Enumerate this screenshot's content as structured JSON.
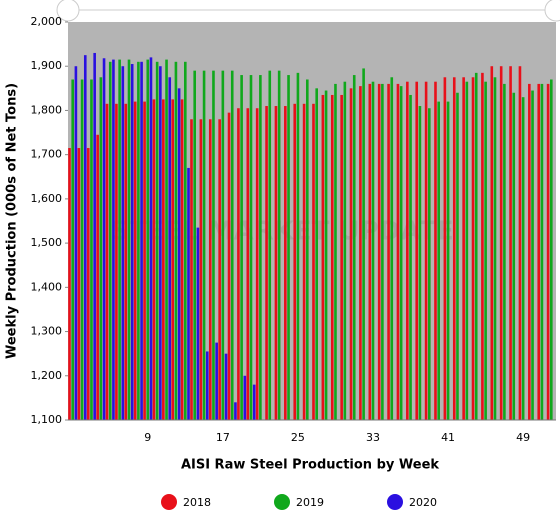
{
  "chart_data": {
    "type": "bar",
    "xlabel": "AISI Raw Steel Production by Week",
    "ylabel": "Weekly Production (000s of Net Tons)",
    "watermark": "STEEL MARKET UPDATE",
    "categories": [
      null,
      null,
      null,
      null,
      null,
      null,
      null,
      null,
      9,
      null,
      null,
      null,
      null,
      null,
      null,
      null,
      17,
      null,
      null,
      null,
      null,
      null,
      null,
      null,
      25,
      null,
      null,
      null,
      null,
      null,
      null,
      null,
      33,
      null,
      null,
      null,
      null,
      null,
      null,
      null,
      41,
      null,
      null,
      null,
      null,
      null,
      null,
      null,
      49,
      null,
      null,
      null
    ],
    "series": [
      {
        "name": "2018",
        "color": "#e8101a",
        "values": [
          1715,
          1715,
          1715,
          1745,
          1815,
          1815,
          1815,
          1820,
          1820,
          1825,
          1825,
          1825,
          1825,
          1780,
          1780,
          1780,
          1780,
          1795,
          1805,
          1805,
          1805,
          1810,
          1810,
          1810,
          1815,
          1815,
          1815,
          1835,
          1835,
          1835,
          1850,
          1855,
          1860,
          1860,
          1860,
          1860,
          1865,
          1865,
          1865,
          1865,
          1875,
          1875,
          1875,
          1875,
          1885,
          1900,
          1900,
          1900,
          1900,
          1860,
          1860,
          1860
        ]
      },
      {
        "name": "2019",
        "color": "#10a81c",
        "values": [
          1870,
          1870,
          1870,
          1875,
          1910,
          1915,
          1915,
          1910,
          1915,
          1910,
          1915,
          1910,
          1910,
          1890,
          1890,
          1890,
          1890,
          1890,
          1880,
          1880,
          1880,
          1890,
          1890,
          1880,
          1885,
          1870,
          1850,
          1845,
          1860,
          1865,
          1880,
          1895,
          1865,
          1860,
          1875,
          1855,
          1835,
          1810,
          1805,
          1820,
          1820,
          1840,
          1865,
          1885,
          1865,
          1875,
          1860,
          1840,
          1830,
          1845,
          1860,
          1870
        ]
      },
      {
        "name": "2020",
        "color": "#2a10e0",
        "values": [
          1900,
          1925,
          1930,
          1918,
          1915,
          1900,
          1905,
          1910,
          1920,
          1900,
          1875,
          1850,
          1670,
          1535,
          1255,
          1275,
          1250,
          1140,
          1200,
          1180,
          null,
          null,
          null,
          null,
          null,
          null,
          null,
          null,
          null,
          null,
          null,
          null,
          null,
          null,
          null,
          null,
          null,
          null,
          null,
          null,
          null,
          null,
          null,
          null,
          null,
          null,
          null,
          null,
          null,
          null,
          null,
          null
        ]
      }
    ],
    "ylim": [
      1100,
      2000
    ],
    "yticks": [
      {
        "value": 1100,
        "label": "1,100"
      },
      {
        "value": 1200,
        "label": "1,200"
      },
      {
        "value": 1300,
        "label": "1,300"
      },
      {
        "value": 1400,
        "label": "1,400"
      },
      {
        "value": 1500,
        "label": "1,500"
      },
      {
        "value": 1600,
        "label": "1,600"
      },
      {
        "value": 1700,
        "label": "1,700"
      },
      {
        "value": 1800,
        "label": "1,800"
      },
      {
        "value": 1900,
        "label": "1,900"
      },
      {
        "value": 2000,
        "label": "2,000"
      }
    ],
    "legend": "bottom"
  }
}
